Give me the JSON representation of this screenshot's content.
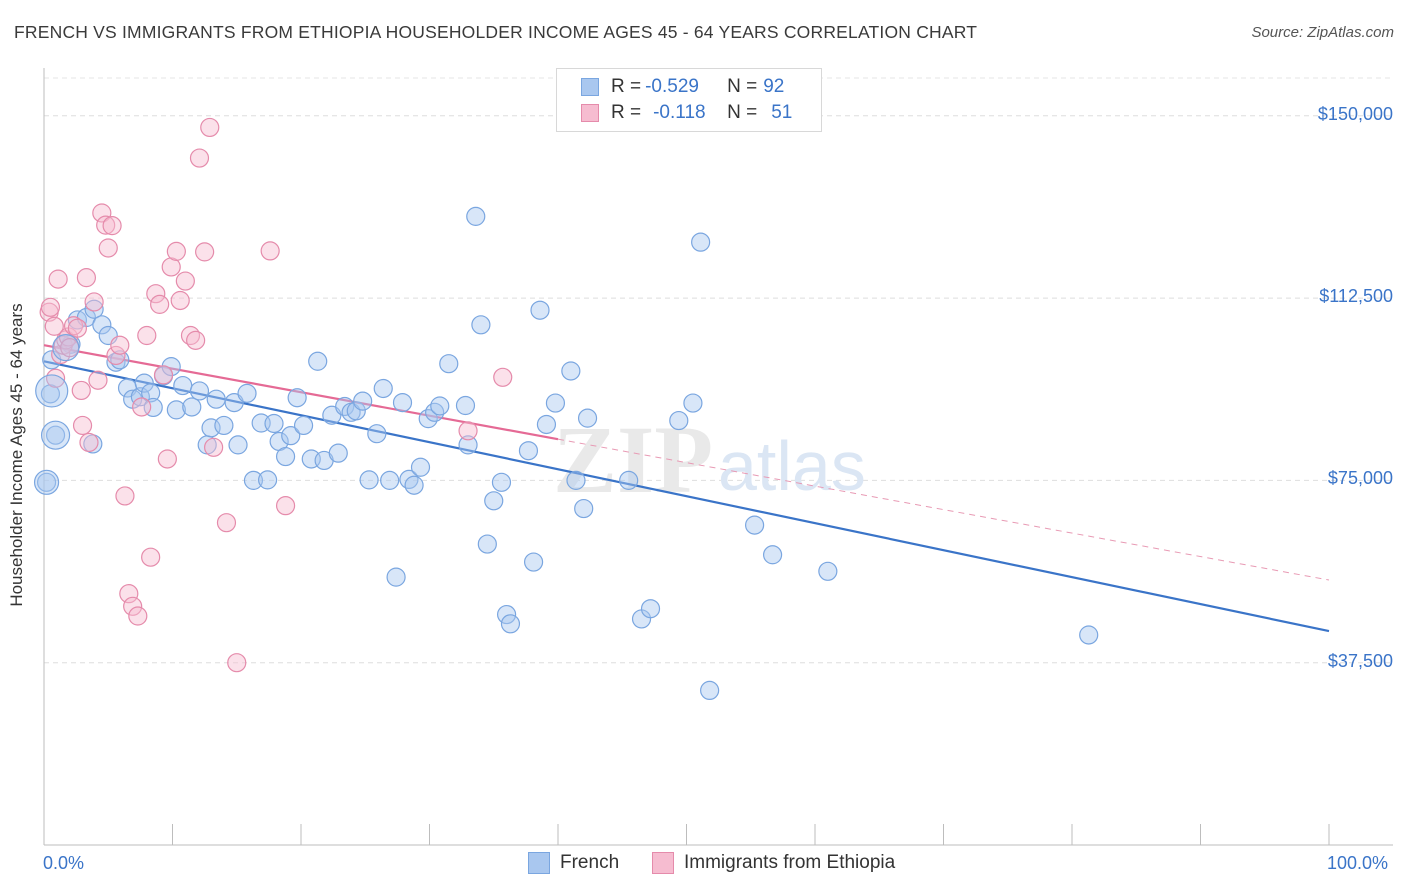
{
  "title": "FRENCH VS IMMIGRANTS FROM ETHIOPIA HOUSEHOLDER INCOME AGES 45 - 64 YEARS CORRELATION CHART",
  "source": "Source: ZipAtlas.com",
  "stats": [
    {
      "r_label": "R = ",
      "r_value": "-0.529",
      "n_label": "N = ",
      "n_value": "92",
      "color": "#a9c7ef",
      "border": "#7aa6e0"
    },
    {
      "r_label": "R = ",
      "r_value": "-0.118",
      "n_label": "N = ",
      "n_value": "51",
      "color": "#f6bcd0",
      "border": "#e58bab"
    }
  ],
  "watermark": {
    "zip": "ZIP",
    "atlas": "atlas"
  },
  "chart_data": {
    "type": "scatter",
    "title": "FRENCH VS IMMIGRANTS FROM ETHIOPIA HOUSEHOLDER INCOME AGES 45 - 64 YEARS CORRELATION CHART",
    "xlabel": "",
    "ylabel": "Householder Income Ages 45 - 64 years",
    "xlim": [
      0,
      100
    ],
    "ylim": [
      0,
      159000
    ],
    "x_tick_labels": [
      "0.0%",
      "100.0%"
    ],
    "y_ticks": [
      37500,
      75000,
      112500,
      150000
    ],
    "y_tick_labels": [
      "$37,500",
      "$75,000",
      "$112,500",
      "$150,000"
    ],
    "grid": true,
    "legend_position": "bottom",
    "series": [
      {
        "name": "French",
        "color": "#7aa6e0",
        "fill": "#a9c7ef",
        "trend": {
          "x": [
            0,
            100
          ],
          "y": [
            99500,
            44000
          ]
        },
        "points": [
          [
            0.6,
            99800
          ],
          [
            0.5,
            92800
          ],
          [
            0.2,
            74600
          ],
          [
            0.9,
            84300
          ],
          [
            2.1,
            103000
          ],
          [
            2.6,
            108000
          ],
          [
            3.3,
            108500
          ],
          [
            3.9,
            110200
          ],
          [
            4.5,
            107000
          ],
          [
            5.0,
            104800
          ],
          [
            5.6,
            99300
          ],
          [
            5.9,
            99800
          ],
          [
            6.5,
            94000
          ],
          [
            6.9,
            91700
          ],
          [
            7.5,
            92200
          ],
          [
            7.8,
            95000
          ],
          [
            8.3,
            93000
          ],
          [
            8.5,
            90000
          ],
          [
            9.3,
            96500
          ],
          [
            9.9,
            98400
          ],
          [
            10.3,
            89500
          ],
          [
            10.8,
            94500
          ],
          [
            11.5,
            90100
          ],
          [
            12.1,
            93400
          ],
          [
            12.7,
            82300
          ],
          [
            13.0,
            85800
          ],
          [
            13.4,
            91700
          ],
          [
            14.0,
            86300
          ],
          [
            14.8,
            91000
          ],
          [
            15.1,
            82300
          ],
          [
            15.8,
            92900
          ],
          [
            16.3,
            75000
          ],
          [
            16.9,
            86800
          ],
          [
            17.4,
            75100
          ],
          [
            17.9,
            86700
          ],
          [
            18.3,
            83000
          ],
          [
            18.8,
            79900
          ],
          [
            19.2,
            84200
          ],
          [
            19.7,
            92000
          ],
          [
            20.2,
            86300
          ],
          [
            20.8,
            79400
          ],
          [
            21.3,
            99500
          ],
          [
            21.8,
            79100
          ],
          [
            22.4,
            88400
          ],
          [
            22.9,
            80600
          ],
          [
            23.4,
            90200
          ],
          [
            23.9,
            89000
          ],
          [
            24.3,
            89300
          ],
          [
            24.8,
            91300
          ],
          [
            25.3,
            75100
          ],
          [
            25.9,
            84600
          ],
          [
            26.4,
            93900
          ],
          [
            26.9,
            75000
          ],
          [
            27.4,
            55100
          ],
          [
            27.9,
            91000
          ],
          [
            28.4,
            75200
          ],
          [
            28.8,
            74000
          ],
          [
            29.3,
            77700
          ],
          [
            29.9,
            87700
          ],
          [
            30.4,
            89000
          ],
          [
            30.8,
            90300
          ],
          [
            31.5,
            99000
          ],
          [
            32.8,
            90400
          ],
          [
            33.0,
            82300
          ],
          [
            33.6,
            129300
          ],
          [
            34.0,
            107000
          ],
          [
            34.5,
            61900
          ],
          [
            35.0,
            70800
          ],
          [
            35.6,
            74600
          ],
          [
            36.0,
            47400
          ],
          [
            36.3,
            45500
          ],
          [
            37.7,
            81100
          ],
          [
            38.1,
            58200
          ],
          [
            38.6,
            110000
          ],
          [
            39.1,
            86500
          ],
          [
            39.8,
            90900
          ],
          [
            41.0,
            97500
          ],
          [
            41.4,
            75000
          ],
          [
            42.0,
            69200
          ],
          [
            42.3,
            87800
          ],
          [
            45.5,
            75000
          ],
          [
            46.5,
            46500
          ],
          [
            47.2,
            48600
          ],
          [
            49.4,
            87300
          ],
          [
            50.5,
            90900
          ],
          [
            51.1,
            124000
          ],
          [
            51.8,
            31800
          ],
          [
            55.3,
            65800
          ],
          [
            56.7,
            59700
          ],
          [
            61.0,
            56300
          ],
          [
            81.3,
            43200
          ],
          [
            3.8,
            82500
          ]
        ]
      },
      {
        "name": "Immigrants from Ethiopia",
        "color": "#e58bab",
        "fill": "#f6bcd0",
        "trend": {
          "x": [
            0,
            100
          ],
          "y": [
            102800,
            54500
          ]
        },
        "points": [
          [
            0.4,
            109600
          ],
          [
            0.5,
            110600
          ],
          [
            0.9,
            96000
          ],
          [
            0.8,
            106700
          ],
          [
            1.1,
            116400
          ],
          [
            1.3,
            100900
          ],
          [
            1.5,
            102800
          ],
          [
            1.7,
            103900
          ],
          [
            1.9,
            104500
          ],
          [
            2.0,
            102300
          ],
          [
            2.3,
            106800
          ],
          [
            2.6,
            106300
          ],
          [
            2.9,
            93500
          ],
          [
            3.0,
            86300
          ],
          [
            3.3,
            116700
          ],
          [
            3.5,
            82800
          ],
          [
            3.9,
            111700
          ],
          [
            4.2,
            95600
          ],
          [
            4.5,
            130000
          ],
          [
            4.8,
            127500
          ],
          [
            5.0,
            122800
          ],
          [
            5.3,
            127400
          ],
          [
            5.6,
            100700
          ],
          [
            5.9,
            102800
          ],
          [
            6.3,
            71800
          ],
          [
            6.6,
            51700
          ],
          [
            6.9,
            49100
          ],
          [
            7.3,
            47100
          ],
          [
            7.6,
            90100
          ],
          [
            8.0,
            104800
          ],
          [
            8.3,
            59200
          ],
          [
            8.7,
            113400
          ],
          [
            9.0,
            111200
          ],
          [
            9.3,
            96700
          ],
          [
            9.6,
            79400
          ],
          [
            9.9,
            118900
          ],
          [
            10.3,
            122100
          ],
          [
            10.6,
            112000
          ],
          [
            11.0,
            116000
          ],
          [
            11.4,
            104800
          ],
          [
            11.8,
            103800
          ],
          [
            12.1,
            141300
          ],
          [
            12.5,
            122000
          ],
          [
            12.9,
            147600
          ],
          [
            13.2,
            81800
          ],
          [
            14.2,
            66300
          ],
          [
            15.0,
            37500
          ],
          [
            17.6,
            122200
          ],
          [
            18.8,
            69800
          ],
          [
            33.0,
            85200
          ],
          [
            35.7,
            96200
          ]
        ]
      }
    ],
    "legend": [
      "French",
      "Immigrants from Ethiopia"
    ]
  }
}
